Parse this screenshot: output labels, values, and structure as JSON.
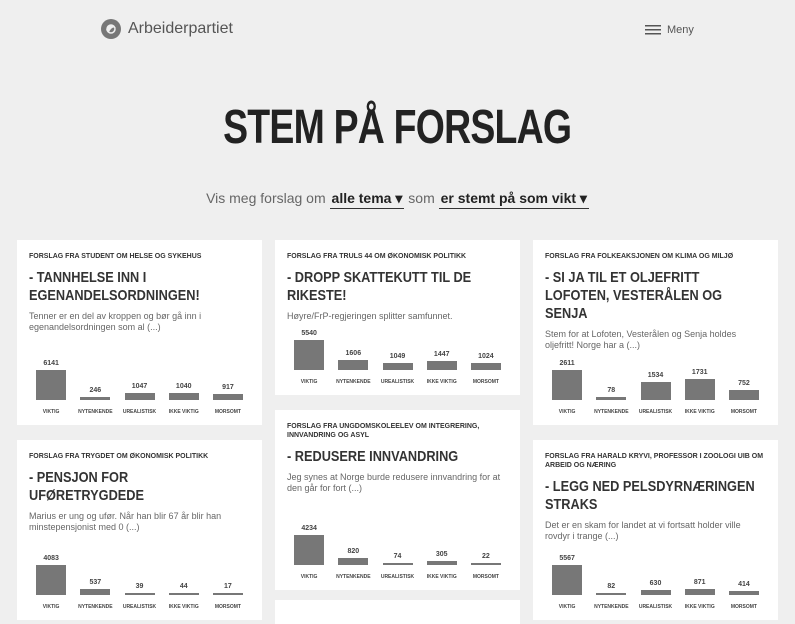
{
  "header": {
    "brand": "Arbeiderpartiet",
    "menu": "Meny"
  },
  "title": "STEM PÅ FORSLAG",
  "filter": {
    "prefix": "Vis meg forslag om",
    "topic": "alle tema",
    "middle": "som",
    "vote": "er stemt på som vikt"
  },
  "from_label": "FORSLAG FRA",
  "about_label": "OM",
  "vote_labels": [
    "VIKTIG",
    "NYTENKENDE",
    "UREALISTISK",
    "IKKE VIKTIG",
    "MORSOMT"
  ],
  "cards": [
    {
      "source": "STUDENT",
      "topic": "HELSE OG SYKEHUS",
      "title": "- TANNHELSE INN I EGENANDELSORDNINGEN!",
      "text": "Tenner er en del av kroppen og bør gå inn i egenandelsordningen som al (...)",
      "votes": [
        6141,
        246,
        1047,
        1040,
        917
      ]
    },
    {
      "source": "TRULS 44",
      "topic": "ØKONOMISK POLITIKK",
      "title": "- DROPP SKATTEKUTT TIL DE RIKESTE!",
      "text": "Høyre/FrP-regjeringen splitter samfunnet.",
      "votes": [
        5540,
        1606,
        1049,
        1447,
        1024
      ]
    },
    {
      "source": "FOLKEAKSJONEN",
      "topic": "KLIMA OG MILJØ",
      "title": "- SI JA TIL ET OLJEFRITT LOFOTEN, VESTERÅLEN OG SENJA",
      "text": "Stem for at Lofoten, Vesterålen og Senja holdes oljefritt! Norge har a (...)",
      "votes": [
        2611,
        78,
        1534,
        1731,
        752
      ]
    },
    {
      "source": "TRYGDET",
      "topic": "ØKONOMISK POLITIKK",
      "title": "- PENSJON FOR UFØRETRYGDEDE",
      "text": "Marius er ung og ufør. Når han blir 67 år blir han minstepensjonist med 0 (...)",
      "votes": [
        4083,
        537,
        39,
        44,
        17
      ]
    },
    {
      "source": "UNGDOMSKOLEELEV",
      "topic": "INTEGRERING, INNVANDRING OG ASYL",
      "title": "- REDUSERE INNVANDRING",
      "text": "Jeg synes at Norge burde redusere innvandring for at den går for fort (...)",
      "votes": [
        4234,
        820,
        74,
        305,
        22
      ]
    },
    {
      "source": "HARALD KRYVI, PROFESSOR I ZOOLOGI UIB",
      "topic": "ARBEID OG NÆRING",
      "title": "- LEGG NED PELSDYRNÆRINGEN STRAKS",
      "text": "Det er en skam for landet at vi fortsatt holder ville rovdyr i trange (...)",
      "votes": [
        5567,
        82,
        630,
        871,
        414
      ]
    }
  ]
}
